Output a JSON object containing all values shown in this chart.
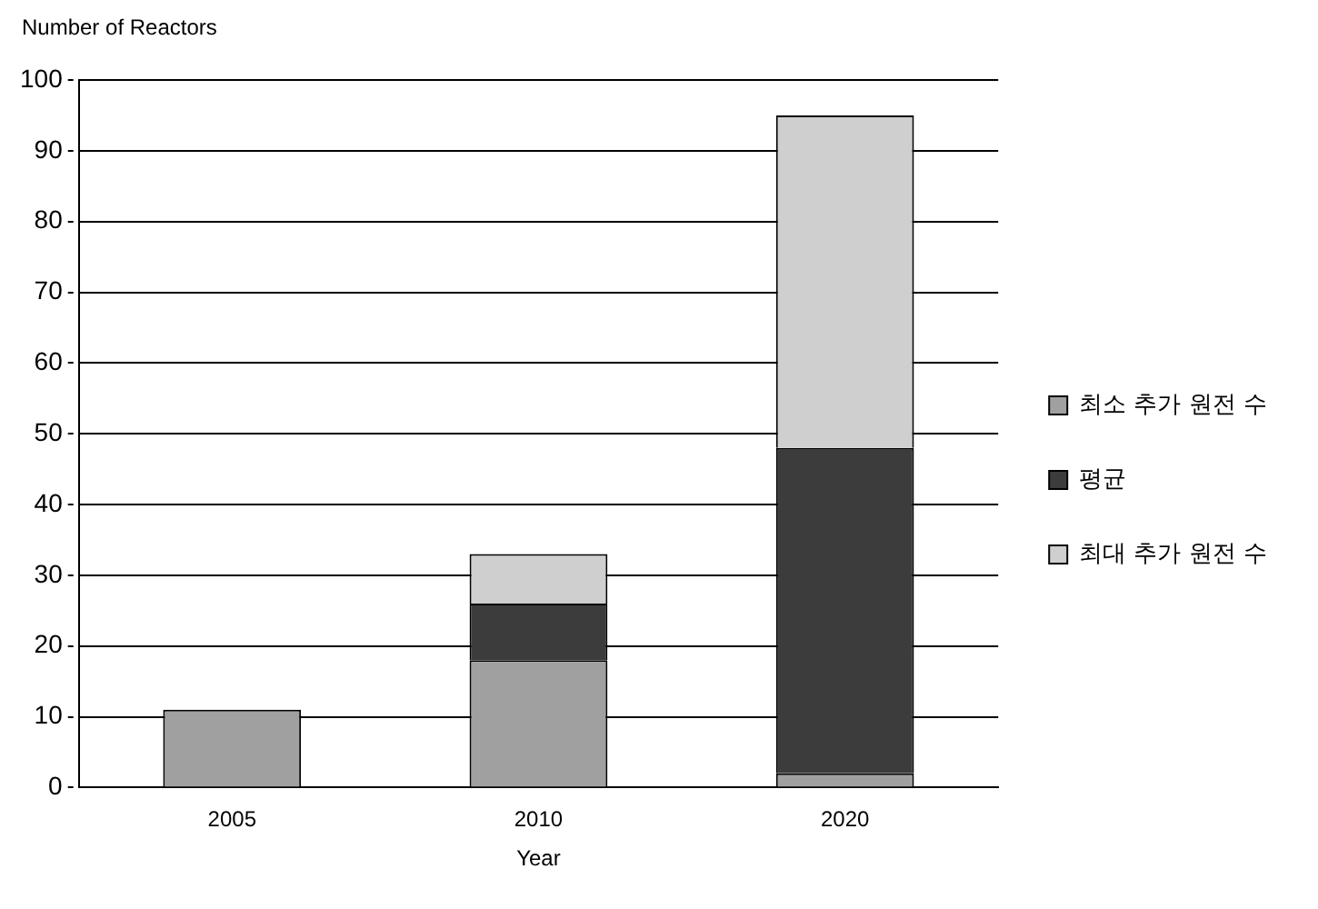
{
  "chart_data": {
    "type": "bar",
    "stacked": true,
    "xlabel": "Year",
    "ylabel": "Number of Reactors",
    "categories": [
      "2005",
      "2010",
      "2020"
    ],
    "series": [
      {
        "name": "최소 추가 원전 수",
        "color": "#a0a0a0",
        "values": [
          11,
          18,
          2
        ]
      },
      {
        "name": "평균",
        "color": "#3c3c3c",
        "values": [
          null,
          8,
          46
        ]
      },
      {
        "name": "최대 추가 원전 수",
        "color": "#cfcfcf",
        "values": [
          null,
          7,
          47
        ]
      }
    ],
    "ylim": [
      0,
      100
    ],
    "yticks": [
      0,
      10,
      20,
      30,
      40,
      50,
      60,
      70,
      80,
      90,
      100
    ],
    "grid": "y",
    "legend": "right"
  }
}
